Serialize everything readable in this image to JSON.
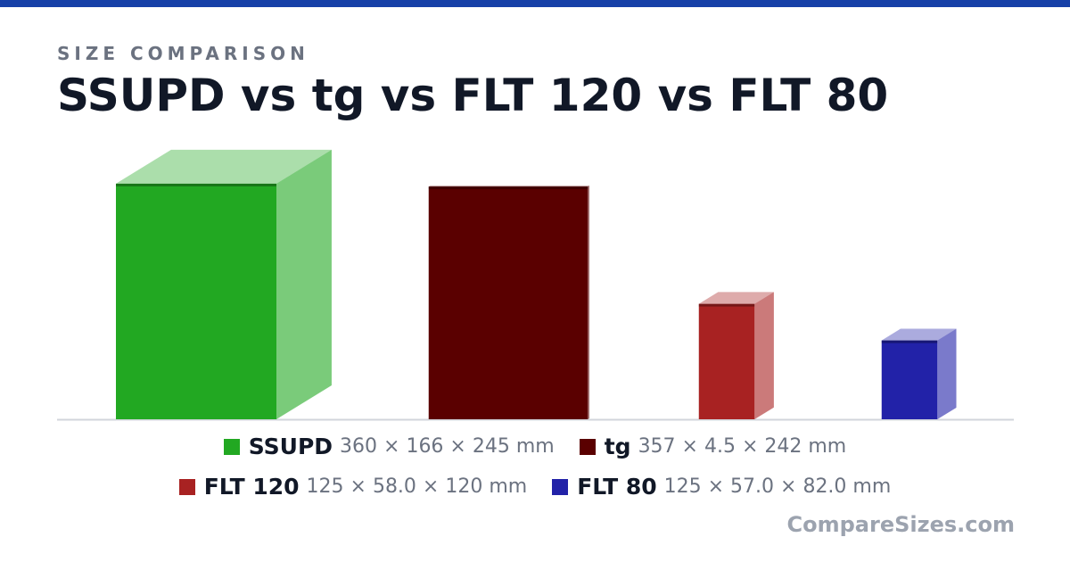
{
  "header": {
    "eyebrow": "SIZE COMPARISON",
    "title": "SSUPD vs tg vs FLT 120 vs FLT 80"
  },
  "chart_data": {
    "type": "box3d",
    "items": [
      {
        "name": "SSUPD",
        "color": "#22a822",
        "width": 360,
        "depth": 166,
        "height": 245,
        "label": "360 × 166 × 245 mm"
      },
      {
        "name": "tg",
        "color": "#5a0000",
        "width": 357,
        "depth": 4.5,
        "height": 242,
        "label": "357 × 4.5 × 242 mm"
      },
      {
        "name": "FLT 120",
        "color": "#a82222",
        "width": 125,
        "depth": 58.0,
        "height": 120,
        "label": "125 × 58.0 × 120 mm"
      },
      {
        "name": "FLT 80",
        "color": "#2222a8",
        "width": 125,
        "depth": 57.0,
        "height": 82.0,
        "label": "125 × 57.0 × 82.0 mm"
      }
    ]
  },
  "footer": "CompareSizes.com"
}
